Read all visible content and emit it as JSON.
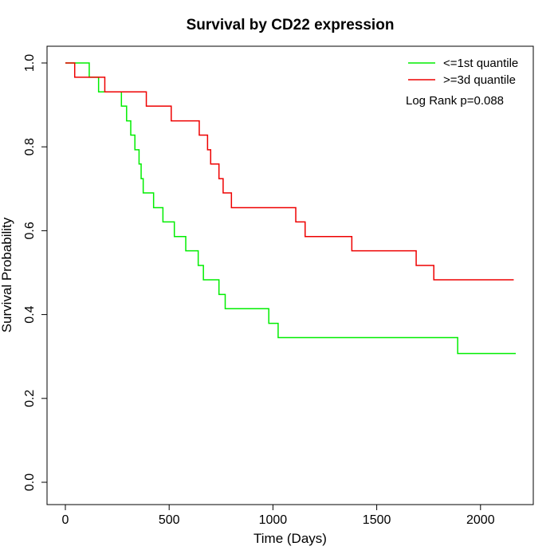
{
  "chart_data": {
    "type": "line",
    "subtype": "step",
    "title": "Survival by CD22 expression",
    "xlabel": "Time (Days)",
    "ylabel": "Survival Probability",
    "xlim": [
      0,
      2200
    ],
    "ylim": [
      0,
      1
    ],
    "xticks": [
      "0",
      "500",
      "1000",
      "1500",
      "2000"
    ],
    "yticks": [
      "0.0",
      "0.2",
      "0.4",
      "0.6",
      "0.8",
      "1.0"
    ],
    "grid": false,
    "legend_position": "top-right",
    "annotation": "Log Rank p=0.088",
    "series": [
      {
        "name": "<=1st quantile",
        "color": "#00ee00",
        "x": [
          0,
          115,
          160,
          270,
          295,
          315,
          335,
          355,
          365,
          375,
          385,
          425,
          470,
          525,
          580,
          640,
          665,
          740,
          770,
          980,
          1025,
          1890,
          2170
        ],
        "y": [
          1.0,
          0.966,
          0.931,
          0.897,
          0.862,
          0.828,
          0.793,
          0.759,
          0.724,
          0.69,
          0.69,
          0.655,
          0.621,
          0.586,
          0.552,
          0.517,
          0.483,
          0.448,
          0.414,
          0.379,
          0.345,
          0.307,
          0.307
        ]
      },
      {
        "name": ">=3d quantile",
        "color": "#ee0000",
        "x": [
          0,
          45,
          190,
          390,
          510,
          645,
          685,
          700,
          740,
          760,
          800,
          1110,
          1155,
          1380,
          1690,
          1775,
          2160
        ],
        "y": [
          1.0,
          0.966,
          0.931,
          0.897,
          0.862,
          0.828,
          0.793,
          0.759,
          0.724,
          0.69,
          0.655,
          0.621,
          0.586,
          0.552,
          0.517,
          0.483,
          0.483
        ]
      }
    ]
  }
}
